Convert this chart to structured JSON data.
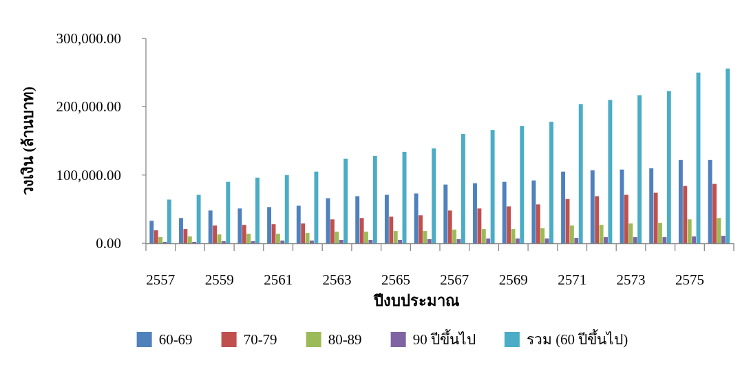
{
  "chart_data": {
    "type": "bar",
    "xlabel": "ปีงบประมาณ",
    "ylabel": "วงเงิน (ล้านบาท)",
    "categories": [
      "2557",
      null,
      "2559",
      null,
      "2561",
      null,
      "2563",
      null,
      "2565",
      null,
      "2567",
      null,
      "2569",
      null,
      "2571",
      null,
      "2573",
      null,
      "2575",
      null
    ],
    "series": [
      {
        "name": "60-69",
        "color": "#4f81bd",
        "values": [
          33000,
          37000,
          48000,
          51000,
          53000,
          55000,
          66000,
          69000,
          71000,
          73000,
          86000,
          88000,
          90000,
          92000,
          105000,
          107000,
          108000,
          110000,
          122000,
          122000
        ]
      },
      {
        "name": "70-79",
        "color": "#c0504d",
        "values": [
          19000,
          21000,
          26000,
          27000,
          28000,
          29000,
          35000,
          37000,
          39000,
          41000,
          48000,
          51000,
          54000,
          57000,
          65000,
          69000,
          71000,
          74000,
          84000,
          87000
        ]
      },
      {
        "name": "80-89",
        "color": "#9bbb59",
        "values": [
          9000,
          10000,
          13000,
          14000,
          14000,
          15000,
          17000,
          17000,
          18000,
          18000,
          20000,
          21000,
          21000,
          22000,
          26000,
          27000,
          29000,
          30000,
          35000,
          37000
        ]
      },
      {
        "name": "90 ปีขึ้นไป",
        "color": "#8064a2",
        "values": [
          2000,
          2000,
          3000,
          3000,
          4000,
          4000,
          5000,
          5000,
          5000,
          6000,
          6000,
          7000,
          7000,
          7000,
          8000,
          9000,
          9000,
          9000,
          10000,
          11000
        ]
      },
      {
        "name": "รวม (60 ปีขึ้นไป)",
        "color": "#4bacc6",
        "values": [
          64000,
          71000,
          90000,
          96000,
          100000,
          105000,
          124000,
          128000,
          134000,
          139000,
          160000,
          166000,
          172000,
          178000,
          204000,
          210000,
          217000,
          223000,
          250000,
          256000
        ]
      }
    ],
    "ylim": [
      0,
      300000
    ],
    "yticks": [
      {
        "value": 0,
        "label": "0.00"
      },
      {
        "value": 100000,
        "label": "100,000.00"
      },
      {
        "value": 200000,
        "label": "200,000.00"
      },
      {
        "value": 300000,
        "label": "300,000.00"
      }
    ],
    "grid": false,
    "legend": "bottom"
  }
}
